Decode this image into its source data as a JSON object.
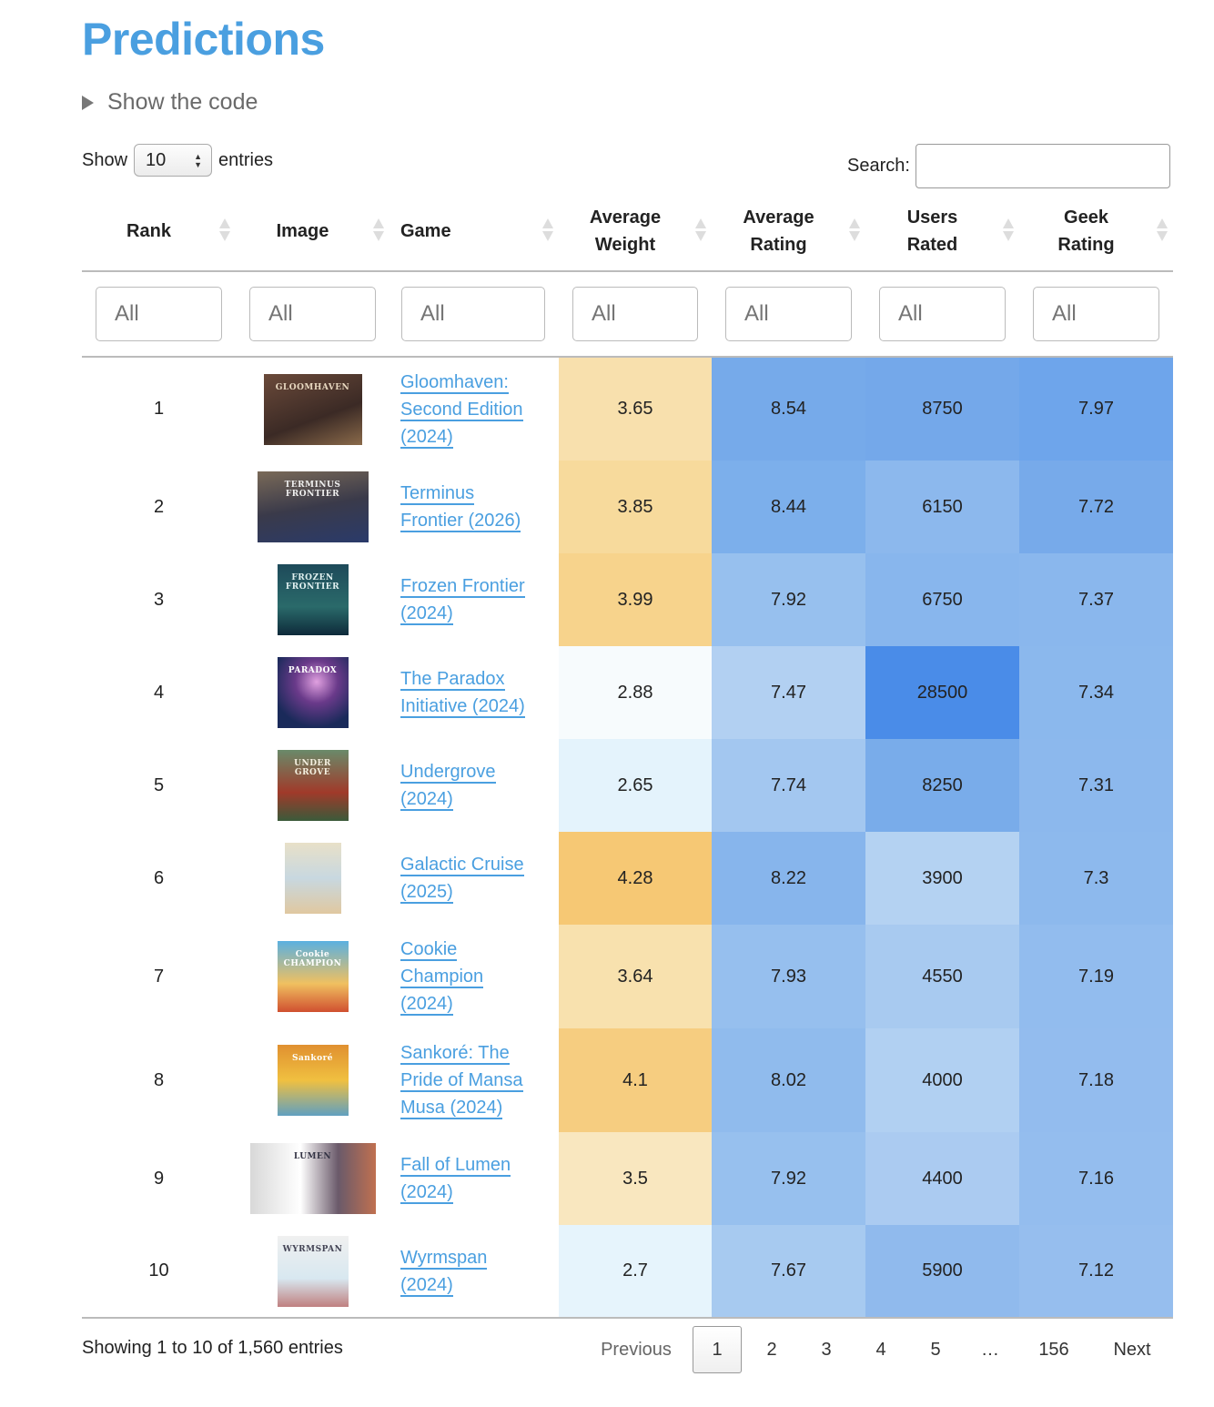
{
  "title": "Predictions",
  "code_toggle": "Show the code",
  "length": {
    "show": "Show",
    "value": "10",
    "entries": "entries"
  },
  "search": {
    "label": "Search:",
    "value": ""
  },
  "columns": [
    {
      "l1": "Rank",
      "l2": ""
    },
    {
      "l1": "Image",
      "l2": ""
    },
    {
      "l1": "Game",
      "l2": ""
    },
    {
      "l1": "Average",
      "l2": "Weight"
    },
    {
      "l1": "Average",
      "l2": "Rating"
    },
    {
      "l1": "Users",
      "l2": "Rated"
    },
    {
      "l1": "Geek",
      "l2": "Rating"
    }
  ],
  "filter_placeholder": "All",
  "rows": [
    {
      "rank": "1",
      "game_lines": [
        "Gloomhaven:",
        "Second Edition",
        "(2024)"
      ],
      "img": "gloomhaven-box-image",
      "img_text": "GLOOMHAVEN",
      "weight": "3.65",
      "rating": "8.54",
      "users": "8750",
      "geek": "7.97",
      "c_weight": "#f8e0ad",
      "c_rating": "#76aaea",
      "c_users": "#74a8ea",
      "c_geek": "#6ea5eb"
    },
    {
      "rank": "2",
      "game_lines": [
        "Terminus",
        "Frontier (2026)"
      ],
      "img": "terminus-frontier-box-image",
      "img_text": "TERMINUS FRONTIER",
      "weight": "3.85",
      "rating": "8.44",
      "users": "6150",
      "geek": "7.72",
      "c_weight": "#f7da9c",
      "c_rating": "#7cafeb",
      "c_users": "#8cb8ed",
      "c_geek": "#77aaea"
    },
    {
      "rank": "3",
      "game_lines": [
        "Frozen Frontier",
        "(2024)"
      ],
      "img": "frozen-frontier-box-image",
      "img_text": "FROZEN FRONTIER",
      "weight": "3.99",
      "rating": "7.92",
      "users": "6750",
      "geek": "7.37",
      "c_weight": "#f7d38c",
      "c_rating": "#97c0ee",
      "c_users": "#88b6ed",
      "c_geek": "#8ab7ed"
    },
    {
      "rank": "4",
      "game_lines": [
        "The Paradox",
        "Initiative (2024)"
      ],
      "img": "paradox-initiative-box-image",
      "img_text": "PARADOX",
      "weight": "2.88",
      "rating": "7.47",
      "users": "28500",
      "geek": "7.34",
      "c_weight": "#f7fbfd",
      "c_rating": "#b2d0f2",
      "c_users": "#4a8ce8",
      "c_geek": "#8bb8ed"
    },
    {
      "rank": "5",
      "game_lines": [
        "Undergrove",
        "(2024)"
      ],
      "img": "undergrove-box-image",
      "img_text": "UNDER GROVE",
      "weight": "2.65",
      "rating": "7.74",
      "users": "8250",
      "geek": "7.31",
      "c_weight": "#e4f3fc",
      "c_rating": "#a3c7f0",
      "c_users": "#79acea",
      "c_geek": "#8cb8ed"
    },
    {
      "rank": "6",
      "game_lines": [
        "Galactic Cruise",
        "(2025)"
      ],
      "img": "galactic-cruise-box-image",
      "img_text": "",
      "weight": "4.28",
      "rating": "8.22",
      "users": "3900",
      "geek": "7.3",
      "c_weight": "#f6c874",
      "c_rating": "#87b5ec",
      "c_users": "#b4d2f2",
      "c_geek": "#8db9ed"
    },
    {
      "rank": "7",
      "game_lines": [
        "Cookie",
        "Champion",
        "(2024)"
      ],
      "img": "cookie-champion-box-image",
      "img_text": "Cookie CHAMPION",
      "weight": "3.64",
      "rating": "7.93",
      "users": "4550",
      "geek": "7.19",
      "c_weight": "#f8e1ae",
      "c_rating": "#96bfee",
      "c_users": "#a8caf0",
      "c_geek": "#92bcee"
    },
    {
      "rank": "8",
      "game_lines": [
        "Sankoré: The",
        "Pride of Mansa",
        "Musa (2024)"
      ],
      "img": "sankore-box-image",
      "img_text": "Sankoré",
      "weight": "4.1",
      "rating": "8.02",
      "users": "4000",
      "geek": "7.18",
      "c_weight": "#f6cd80",
      "c_rating": "#90bbed",
      "c_users": "#b1d0f2",
      "c_geek": "#93bcee"
    },
    {
      "rank": "9",
      "game_lines": [
        "Fall of Lumen",
        "(2024)"
      ],
      "img": "fall-of-lumen-box-image",
      "img_text": "LUMEN",
      "weight": "3.5",
      "rating": "7.92",
      "users": "4400",
      "geek": "7.16",
      "c_weight": "#f9e7bf",
      "c_rating": "#97c0ee",
      "c_users": "#abcbf1",
      "c_geek": "#94bdee"
    },
    {
      "rank": "10",
      "game_lines": [
        "Wyrmspan",
        "(2024)"
      ],
      "img": "wyrmspan-box-image",
      "img_text": "WYRMSPAN",
      "weight": "2.7",
      "rating": "7.67",
      "users": "5900",
      "geek": "7.12",
      "c_weight": "#e6f4fc",
      "c_rating": "#a7caf0",
      "c_users": "#90baed",
      "c_geek": "#96beee"
    }
  ],
  "info": "Showing 1 to 10 of 1,560 entries",
  "pagination": {
    "previous": "Previous",
    "pages": [
      "1",
      "2",
      "3",
      "4",
      "5"
    ],
    "ellipsis": "…",
    "last": "156",
    "next": "Next",
    "current": "1"
  }
}
